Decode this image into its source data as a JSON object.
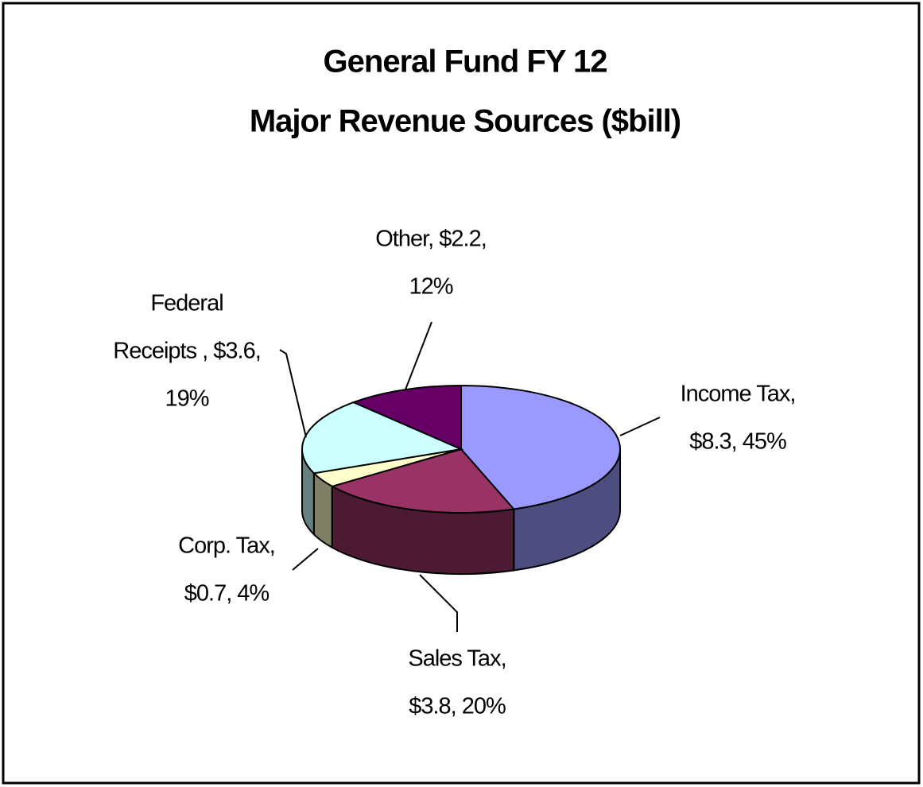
{
  "chart_data": {
    "type": "pie3d",
    "title": [
      "General Fund FY 12",
      "Major Revenue Sources ($bill)"
    ],
    "values": [
      8.3,
      3.8,
      0.7,
      3.6,
      2.2
    ],
    "value_labels": [
      [
        "Income Tax,",
        "$8.3, 45%"
      ],
      [
        "Sales Tax,",
        "$3.8, 20%"
      ],
      [
        "Corp. Tax,",
        "$0.7, 4%"
      ],
      [
        "Federal",
        "Receipts , $3.6,",
        "19%"
      ],
      [
        "Other, $2.2,",
        "12%"
      ]
    ],
    "colors": [
      "#9999ff",
      "#993366",
      "#ffffcc",
      "#ccffff",
      "#660066"
    ]
  }
}
